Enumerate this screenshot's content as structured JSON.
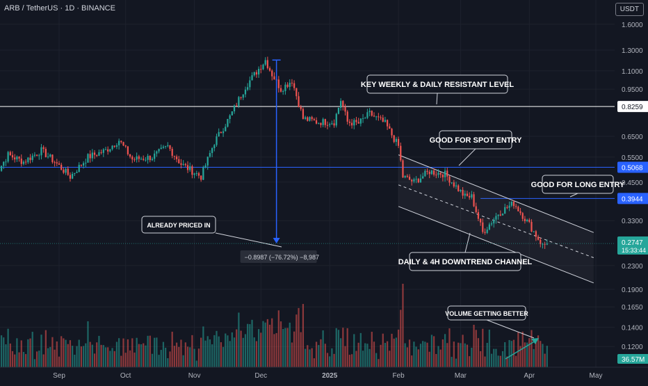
{
  "header": {
    "title": "ARB / TetherUS · 1D · BINANCE",
    "currency": "USDT"
  },
  "colors": {
    "up": "#26a69a",
    "down": "#ef5350",
    "blue": "#2962ff",
    "bg": "#131722",
    "text": "#d1d4dc"
  },
  "chart_data": {
    "type": "candlestick",
    "symbol": "ARB / TetherUS",
    "interval": "1D",
    "exchange": "BINANCE",
    "scale": "log",
    "ylim": [
      0.105,
      1.75
    ],
    "yticks": [
      "1.6000",
      "1.3000",
      "1.1000",
      "0.9500",
      "0.8259",
      "0.6500",
      "0.5500",
      "0.5068",
      "0.4500",
      "0.3944",
      "0.3300",
      "0.2747",
      "0.2300",
      "0.1900",
      "0.1650",
      "0.1400",
      "0.1200",
      "36.57M"
    ],
    "ytick_values": [
      1.6,
      1.3,
      1.1,
      0.95,
      0.65,
      0.55,
      0.45,
      0.33,
      0.23,
      0.19,
      0.165,
      0.14,
      0.12
    ],
    "xticks": [
      "Sep",
      "Oct",
      "Nov",
      "Dec",
      "2025",
      "Feb",
      "Mar",
      "Apr",
      "May"
    ],
    "xtick_dates": [
      "2024-09-01",
      "2024-10-01",
      "2024-11-01",
      "2024-12-01",
      "2025-01-01",
      "2025-02-01",
      "2025-03-01",
      "2025-04-01",
      "2025-05-01"
    ],
    "price_path": [
      [
        "2024-08-02",
        0.6
      ],
      [
        "2024-08-05",
        0.5
      ],
      [
        "2024-08-09",
        0.56
      ],
      [
        "2024-08-16",
        0.53
      ],
      [
        "2024-08-24",
        0.58
      ],
      [
        "2024-08-30",
        0.53
      ],
      [
        "2024-09-06",
        0.47
      ],
      [
        "2024-09-14",
        0.55
      ],
      [
        "2024-09-22",
        0.58
      ],
      [
        "2024-09-28",
        0.63
      ],
      [
        "2024-10-04",
        0.54
      ],
      [
        "2024-10-13",
        0.55
      ],
      [
        "2024-10-20",
        0.6
      ],
      [
        "2024-10-26",
        0.52
      ],
      [
        "2024-11-04",
        0.47
      ],
      [
        "2024-11-10",
        0.62
      ],
      [
        "2024-11-17",
        0.76
      ],
      [
        "2024-11-24",
        0.97
      ],
      [
        "2024-12-03",
        1.2
      ],
      [
        "2024-12-06",
        1.07
      ],
      [
        "2024-12-10",
        0.95
      ],
      [
        "2024-12-15",
        1.02
      ],
      [
        "2024-12-20",
        0.75
      ],
      [
        "2024-12-26",
        0.73
      ],
      [
        "2025-01-03",
        0.73
      ],
      [
        "2025-01-06",
        0.87
      ],
      [
        "2025-01-09",
        0.73
      ],
      [
        "2025-01-14",
        0.72
      ],
      [
        "2025-01-19",
        0.78
      ],
      [
        "2025-01-26",
        0.72
      ],
      [
        "2025-02-01",
        0.6
      ],
      [
        "2025-02-03",
        0.47
      ],
      [
        "2025-02-08",
        0.45
      ],
      [
        "2025-02-15",
        0.49
      ],
      [
        "2025-02-22",
        0.48
      ],
      [
        "2025-03-03",
        0.4
      ],
      [
        "2025-03-06",
        0.4
      ],
      [
        "2025-03-11",
        0.3
      ],
      [
        "2025-03-18",
        0.35
      ],
      [
        "2025-03-25",
        0.38
      ],
      [
        "2025-04-01",
        0.32
      ],
      [
        "2025-04-07",
        0.27
      ],
      [
        "2025-04-09",
        0.2747
      ]
    ],
    "volume_max_label": "36.57M",
    "current_price": {
      "value": "0.2747",
      "countdown": "15:33:44"
    },
    "horizontal_levels": [
      {
        "value": 0.8259,
        "label": "0.8259",
        "color": "#ffffff"
      },
      {
        "value": 0.5068,
        "label": "0.5068",
        "color": "#2962ff"
      },
      {
        "value": 0.3944,
        "label": "0.3944",
        "color": "#2962ff"
      }
    ],
    "channel": {
      "upper": [
        [
          "2025-02-01",
          0.56
        ],
        [
          "2025-04-30",
          0.3
        ]
      ],
      "middle": [
        [
          "2025-02-01",
          0.44
        ],
        [
          "2025-04-30",
          0.245
        ]
      ],
      "lower": [
        [
          "2025-02-01",
          0.37
        ],
        [
          "2025-04-30",
          0.2
        ]
      ]
    },
    "measure": {
      "from": [
        "2024-12-08",
        1.2
      ],
      "to": [
        "2024-12-08",
        0.2747
      ],
      "label": "−0.8987 (−76.72%) −8,987"
    },
    "annotations": [
      "KEY WEEKLY & DAILY RESISTANT LEVEL",
      "GOOD FOR SPOT ENTRY",
      "GOOD FOR LONG ENTRY",
      "ALREADY PRICED IN",
      "DAILY & 4H DOWNTREND CHANNEL",
      "VOLUME GETTING BETTER"
    ]
  }
}
